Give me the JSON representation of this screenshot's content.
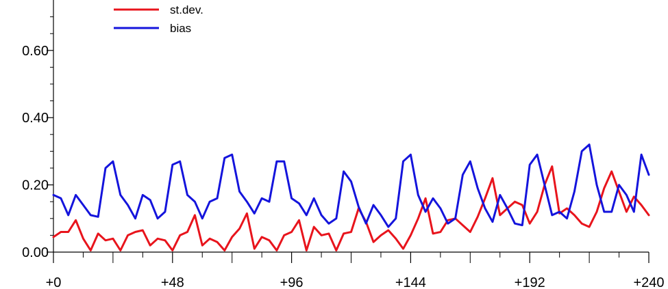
{
  "chart_data": {
    "type": "line",
    "title": "",
    "xlabel": "",
    "ylabel": "",
    "xlim": [
      0,
      240
    ],
    "ylim": [
      0,
      0.75
    ],
    "x_tick_values": [
      0,
      48,
      96,
      144,
      192,
      240
    ],
    "x_tick_labels": [
      "+0",
      "+48",
      "+96",
      "+144",
      "+192",
      "+240"
    ],
    "y_tick_values": [
      0,
      0.2,
      0.4,
      0.6
    ],
    "y_tick_labels": [
      "0.00",
      "0.20",
      "0.40",
      "0.60"
    ],
    "grid": false,
    "legend_position": "top-left",
    "series": [
      {
        "name": "st.dev.",
        "color": "#e8141c",
        "x": [
          0,
          3,
          6,
          9,
          12,
          15,
          18,
          21,
          24,
          27,
          30,
          33,
          36,
          39,
          42,
          45,
          48,
          51,
          54,
          57,
          60,
          63,
          66,
          69,
          72,
          75,
          78,
          81,
          84,
          87,
          90,
          93,
          96,
          99,
          102,
          105,
          108,
          111,
          114,
          117,
          120,
          123,
          126,
          129,
          132,
          135,
          138,
          141,
          144,
          147,
          150,
          153,
          156,
          159,
          162,
          165,
          168,
          171,
          174,
          177,
          180,
          183,
          186,
          189,
          192,
          195,
          198,
          201,
          204,
          207,
          210,
          213,
          216,
          219,
          222,
          225,
          228,
          231,
          234,
          237,
          240
        ],
        "values": [
          0.045,
          0.06,
          0.06,
          0.095,
          0.04,
          0.005,
          0.055,
          0.035,
          0.04,
          0.005,
          0.05,
          0.06,
          0.065,
          0.02,
          0.04,
          0.035,
          0.005,
          0.05,
          0.06,
          0.11,
          0.02,
          0.04,
          0.03,
          0.005,
          0.045,
          0.07,
          0.115,
          0.01,
          0.045,
          0.035,
          0.005,
          0.05,
          0.06,
          0.095,
          0.005,
          0.075,
          0.05,
          0.055,
          0.005,
          0.055,
          0.06,
          0.13,
          0.09,
          0.03,
          0.05,
          0.065,
          0.04,
          0.01,
          0.05,
          0.1,
          0.16,
          0.055,
          0.06,
          0.095,
          0.1,
          0.08,
          0.06,
          0.105,
          0.16,
          0.22,
          0.11,
          0.13,
          0.15,
          0.14,
          0.085,
          0.12,
          0.2,
          0.255,
          0.115,
          0.13,
          0.11,
          0.085,
          0.075,
          0.12,
          0.19,
          0.24,
          0.18,
          0.12,
          0.165,
          0.14,
          0.11
        ]
      },
      {
        "name": "bias",
        "color": "#1414dc",
        "x": [
          0,
          3,
          6,
          9,
          12,
          15,
          18,
          21,
          24,
          27,
          30,
          33,
          36,
          39,
          42,
          45,
          48,
          51,
          54,
          57,
          60,
          63,
          66,
          69,
          72,
          75,
          78,
          81,
          84,
          87,
          90,
          93,
          96,
          99,
          102,
          105,
          108,
          111,
          114,
          117,
          120,
          123,
          126,
          129,
          132,
          135,
          138,
          141,
          144,
          147,
          150,
          153,
          156,
          159,
          162,
          165,
          168,
          171,
          174,
          177,
          180,
          183,
          186,
          189,
          192,
          195,
          198,
          201,
          204,
          207,
          210,
          213,
          216,
          219,
          222,
          225,
          228,
          231,
          234,
          237,
          240
        ],
        "values": [
          0.17,
          0.16,
          0.11,
          0.17,
          0.14,
          0.11,
          0.105,
          0.25,
          0.27,
          0.17,
          0.14,
          0.1,
          0.17,
          0.155,
          0.1,
          0.12,
          0.26,
          0.27,
          0.17,
          0.15,
          0.1,
          0.15,
          0.16,
          0.28,
          0.29,
          0.18,
          0.15,
          0.115,
          0.16,
          0.15,
          0.27,
          0.27,
          0.16,
          0.145,
          0.11,
          0.16,
          0.11,
          0.085,
          0.1,
          0.24,
          0.21,
          0.135,
          0.085,
          0.14,
          0.11,
          0.075,
          0.1,
          0.27,
          0.29,
          0.17,
          0.12,
          0.16,
          0.13,
          0.085,
          0.1,
          0.23,
          0.27,
          0.19,
          0.13,
          0.09,
          0.17,
          0.13,
          0.085,
          0.08,
          0.26,
          0.29,
          0.2,
          0.11,
          0.12,
          0.1,
          0.18,
          0.3,
          0.32,
          0.2,
          0.12,
          0.12,
          0.2,
          0.17,
          0.12,
          0.29,
          0.23
        ]
      }
    ]
  }
}
